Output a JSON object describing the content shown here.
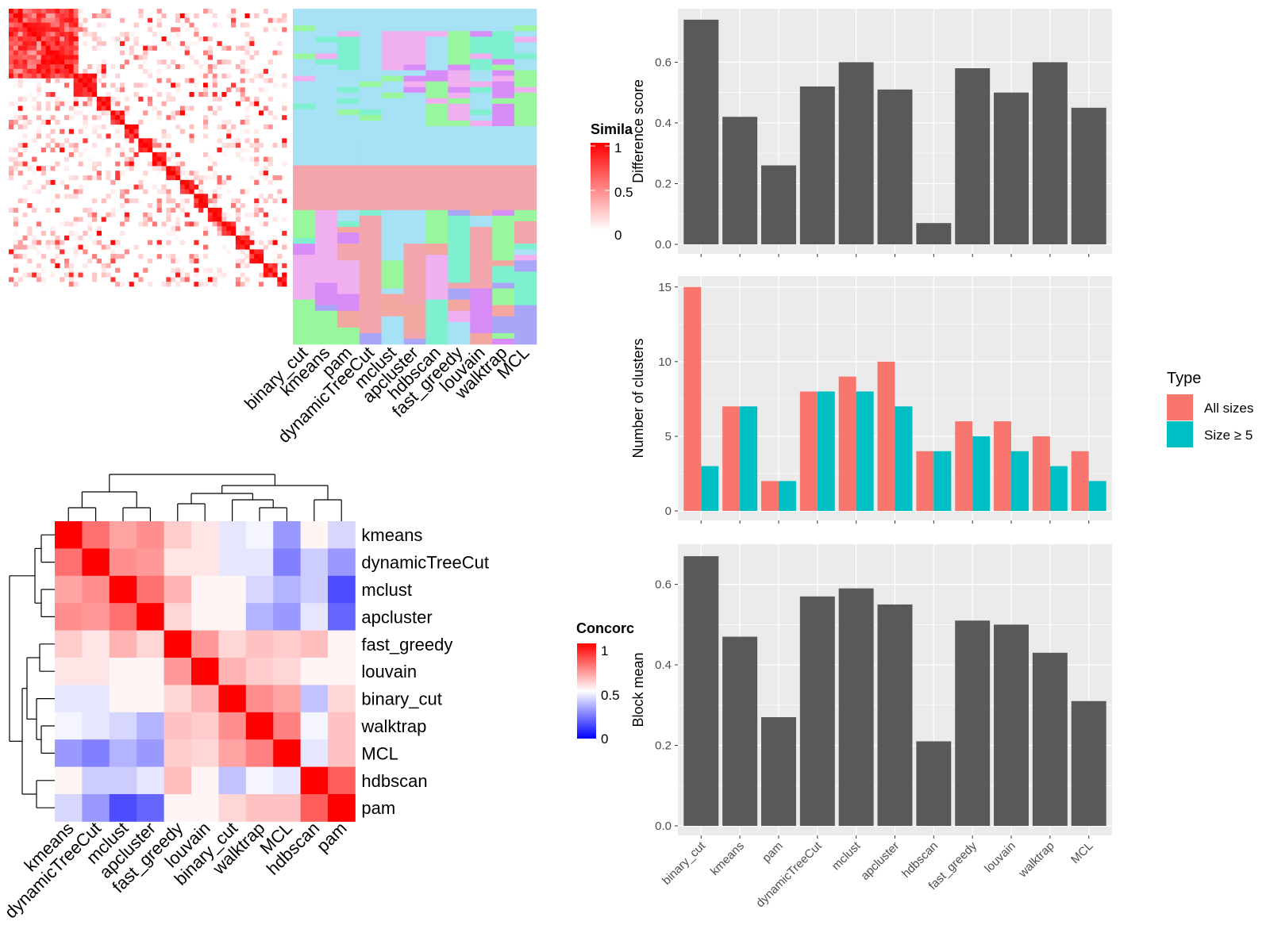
{
  "colors": {
    "panel_bg": "#ebebeb",
    "grid": "#ffffff",
    "bar_dark": "#595959",
    "all_sizes": "#F8766D",
    "size_ge5": "#00BFC4",
    "heat_high": "#ff0000",
    "heat_low": "#ffffff",
    "concord_low": "#0000ff"
  },
  "similarity_panel": {
    "legend_title": "Simila",
    "legend_ticks": [
      "1",
      "0.5",
      "0"
    ],
    "methods": [
      "binary_cut",
      "kmeans",
      "pam",
      "dynamicTreeCut",
      "mclust",
      "apcluster",
      "hdbscan",
      "fast_greedy",
      "louvain",
      "walktrap",
      "MCL"
    ]
  },
  "concordance_panel": {
    "legend_title": "Concorc",
    "legend_ticks": [
      "1",
      "0.5",
      "0"
    ],
    "row_labels": [
      "kmeans",
      "dynamicTreeCut",
      "mclust",
      "apcluster",
      "fast_greedy",
      "louvain",
      "binary_cut",
      "walktrap",
      "MCL",
      "hdbscan",
      "pam"
    ],
    "col_labels": [
      "kmeans",
      "dynamicTreeCut",
      "mclust",
      "apcluster",
      "fast_greedy",
      "louvain",
      "binary_cut",
      "walktrap",
      "MCL",
      "hdbscan",
      "pam"
    ],
    "matrix": [
      [
        1.0,
        0.78,
        0.68,
        0.72,
        0.6,
        0.55,
        0.45,
        0.48,
        0.3,
        0.52,
        0.42
      ],
      [
        0.78,
        1.0,
        0.72,
        0.7,
        0.55,
        0.55,
        0.45,
        0.45,
        0.25,
        0.4,
        0.3
      ],
      [
        0.68,
        0.72,
        1.0,
        0.78,
        0.65,
        0.52,
        0.52,
        0.42,
        0.35,
        0.4,
        0.15
      ],
      [
        0.72,
        0.7,
        0.78,
        1.0,
        0.58,
        0.52,
        0.52,
        0.35,
        0.3,
        0.45,
        0.2
      ],
      [
        0.6,
        0.55,
        0.65,
        0.58,
        1.0,
        0.7,
        0.58,
        0.62,
        0.6,
        0.63,
        0.52
      ],
      [
        0.55,
        0.55,
        0.52,
        0.52,
        0.7,
        1.0,
        0.65,
        0.6,
        0.58,
        0.52,
        0.52
      ],
      [
        0.45,
        0.45,
        0.52,
        0.52,
        0.58,
        0.65,
        1.0,
        0.72,
        0.68,
        0.38,
        0.58
      ],
      [
        0.48,
        0.45,
        0.42,
        0.35,
        0.62,
        0.6,
        0.72,
        1.0,
        0.75,
        0.48,
        0.62
      ],
      [
        0.3,
        0.25,
        0.35,
        0.3,
        0.6,
        0.58,
        0.68,
        0.75,
        1.0,
        0.45,
        0.62
      ],
      [
        0.52,
        0.4,
        0.4,
        0.45,
        0.63,
        0.52,
        0.38,
        0.48,
        0.45,
        1.0,
        0.82
      ],
      [
        0.42,
        0.3,
        0.15,
        0.2,
        0.52,
        0.52,
        0.58,
        0.62,
        0.62,
        0.82,
        1.0
      ]
    ]
  },
  "chart_data": [
    {
      "type": "bar",
      "categories": [
        "binary_cut",
        "kmeans",
        "pam",
        "dynamicTreeCut",
        "mclust",
        "apcluster",
        "hdbscan",
        "fast_greedy",
        "louvain",
        "walktrap",
        "MCL"
      ],
      "values": [
        0.74,
        0.42,
        0.26,
        0.52,
        0.6,
        0.51,
        0.07,
        0.58,
        0.5,
        0.6,
        0.45
      ],
      "ylabel": "Difference score",
      "ylim": [
        0,
        0.75
      ],
      "yticks": [
        "0.0",
        "0.2",
        "0.4",
        "0.6"
      ],
      "grid": true
    },
    {
      "type": "bar",
      "categories": [
        "binary_cut",
        "kmeans",
        "pam",
        "dynamicTreeCut",
        "mclust",
        "apcluster",
        "hdbscan",
        "fast_greedy",
        "louvain",
        "walktrap",
        "MCL"
      ],
      "series": [
        {
          "name": "All sizes",
          "values": [
            15,
            7,
            2,
            8,
            9,
            10,
            4,
            6,
            6,
            5,
            4
          ]
        },
        {
          "name": "Size ≥ 5",
          "values": [
            3,
            7,
            2,
            8,
            8,
            7,
            4,
            5,
            4,
            3,
            2
          ]
        }
      ],
      "ylabel": "Number of clusters",
      "ylim": [
        0,
        15.2
      ],
      "yticks": [
        "0",
        "5",
        "10",
        "15"
      ],
      "legend_title": "Type",
      "legend_position": "right",
      "grid": true
    },
    {
      "type": "bar",
      "categories": [
        "binary_cut",
        "kmeans",
        "pam",
        "dynamicTreeCut",
        "mclust",
        "apcluster",
        "hdbscan",
        "fast_greedy",
        "louvain",
        "walktrap",
        "MCL"
      ],
      "values": [
        0.67,
        0.47,
        0.27,
        0.57,
        0.59,
        0.55,
        0.21,
        0.51,
        0.5,
        0.43,
        0.31
      ],
      "ylabel": "Block mean",
      "ylim": [
        0,
        0.68
      ],
      "yticks": [
        "0.0",
        "0.2",
        "0.4",
        "0.6"
      ],
      "grid": true
    }
  ]
}
